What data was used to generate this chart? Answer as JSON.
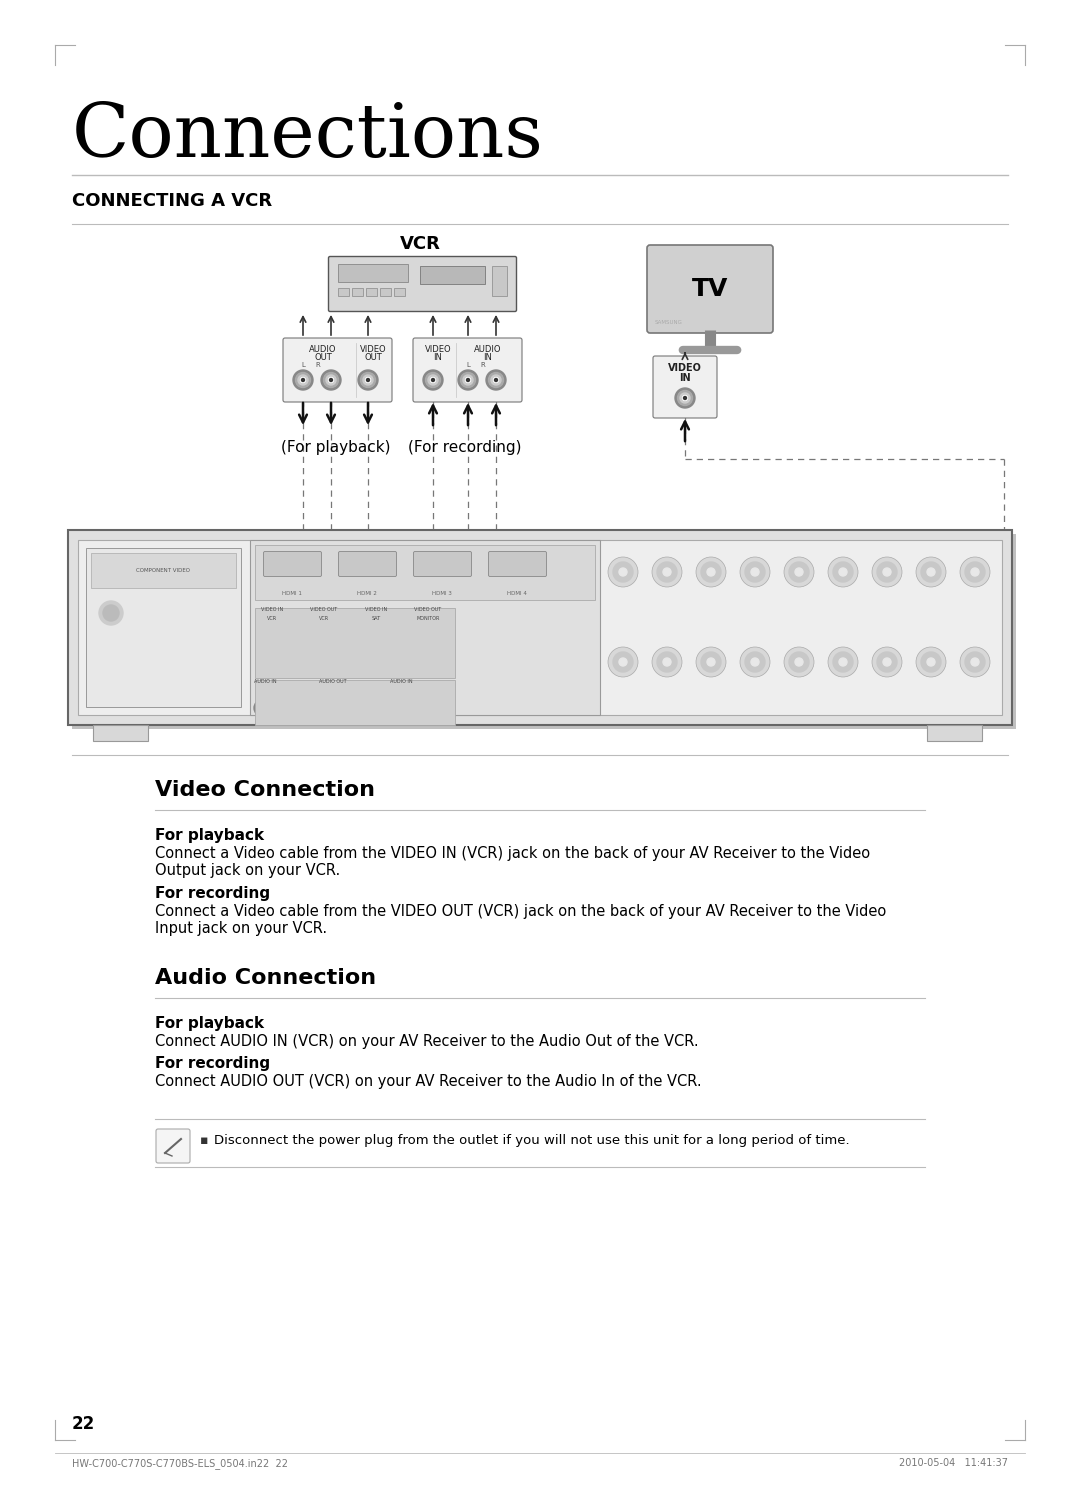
{
  "page_title": "Connections",
  "section_title": "CONNECTING A VCR",
  "vcr_label": "VCR",
  "tv_label": "TV",
  "for_playback_label": "(For playback)",
  "for_recording_label": "(For recording)",
  "video_conn_title": "Video Connection",
  "video_pb_bold": "For playback",
  "video_pb_text": "Connect a Video cable from the VIDEO IN (VCR) jack on the back of your AV Receiver to the Video\nOutput jack on your VCR.",
  "video_rec_bold": "For recording",
  "video_rec_text": "Connect a Video cable from the VIDEO OUT (VCR) jack on the back of your AV Receiver to the Video\nInput jack on your VCR.",
  "audio_conn_title": "Audio Connection",
  "audio_pb_bold": "For playback",
  "audio_pb_text": "Connect AUDIO IN (VCR) on your AV Receiver to the Audio Out of the VCR.",
  "audio_rec_bold": "For recording",
  "audio_rec_text": "Connect AUDIO OUT (VCR) on your AV Receiver to the Audio In of the VCR.",
  "note_text": "Disconnect the power plug from the outlet if you will not use this unit for a long period of time.",
  "page_number": "22",
  "footer_left": "HW-C700-C770S-C770BS-ELS_0504.in22  22",
  "footer_right": "2010-05-04   11:41:37",
  "bg_color": "#ffffff",
  "text_color": "#000000",
  "light_gray": "#bbbbbb",
  "mid_gray": "#888888",
  "dark_gray": "#444444",
  "connector_fill": "#e8e8e8",
  "device_fill": "#d8d8d8",
  "dashed_color": "#777777"
}
